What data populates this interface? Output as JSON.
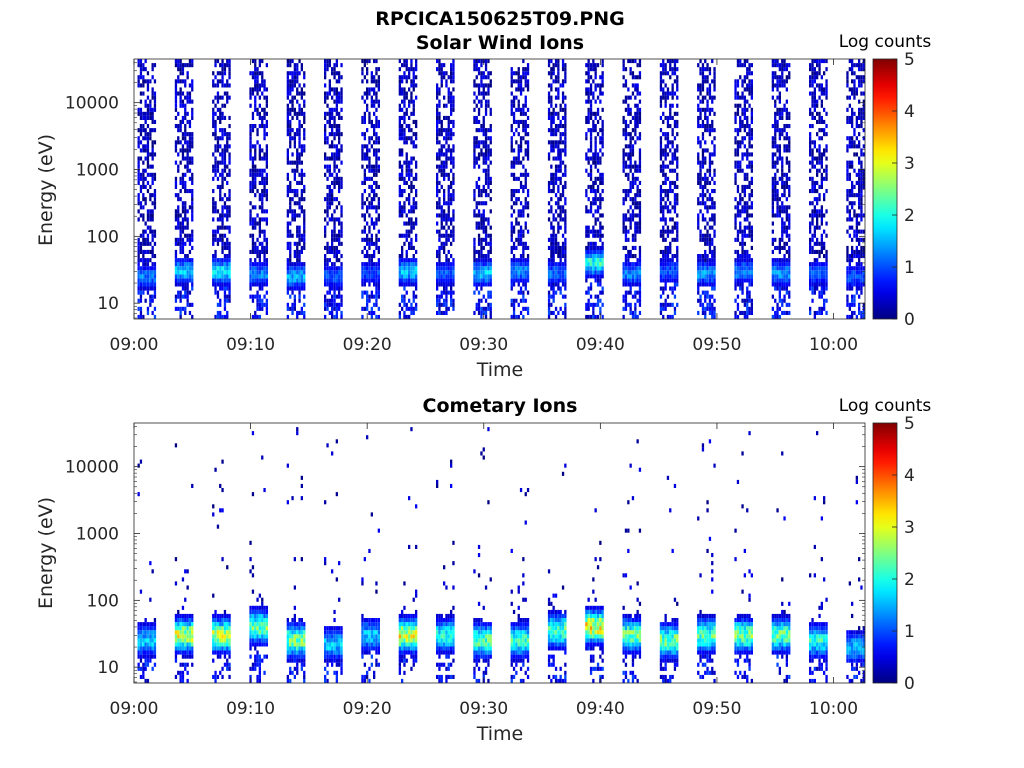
{
  "figure": {
    "title": "RPCICA150625T09.PNG"
  },
  "chart_data": [
    {
      "type": "heatmap",
      "title": "Solar Wind Ions",
      "xlabel": "Time",
      "ylabel": "Energy (eV)",
      "x_tick_labels": [
        "09:00",
        "09:10",
        "09:20",
        "09:30",
        "09:40",
        "09:50",
        "10:00"
      ],
      "x_ticks_minutes": [
        0,
        10,
        20,
        30,
        40,
        50,
        60
      ],
      "xlim_minutes": [
        0,
        62.7
      ],
      "y_scale": "log",
      "y_tick_labels": [
        "10",
        "100",
        "1000",
        "10000"
      ],
      "y_ticks": [
        10,
        100,
        1000,
        10000
      ],
      "ylim": [
        5.8,
        45000
      ],
      "colorbar": {
        "label": "Log counts",
        "ticks": [
          "0",
          "1",
          "2",
          "3",
          "4",
          "5"
        ],
        "range": [
          0,
          5
        ],
        "colormap": "jet"
      },
      "scan_start_minutes": [
        0.3,
        3.5,
        6.7,
        9.9,
        13.1,
        16.3,
        19.5,
        22.7,
        25.9,
        29.1,
        32.3,
        35.5,
        38.7,
        41.9,
        45.1,
        48.3,
        51.5,
        54.7,
        57.9,
        61.1
      ],
      "peak_energy_eV": [
        25,
        30,
        30,
        28,
        25,
        25,
        28,
        30,
        28,
        28,
        30,
        28,
        40,
        28,
        30,
        28,
        30,
        28,
        28,
        25
      ],
      "peak_log_counts": [
        1.5,
        2.0,
        2.2,
        1.6,
        1.8,
        1.3,
        1.2,
        2.0,
        1.3,
        2.0,
        1.6,
        1.4,
        2.6,
        1.6,
        1.3,
        1.7,
        1.6,
        1.7,
        1.3,
        1.3
      ]
    },
    {
      "type": "heatmap",
      "title": "Cometary Ions",
      "xlabel": "Time",
      "ylabel": "Energy (eV)",
      "x_tick_labels": [
        "09:00",
        "09:10",
        "09:20",
        "09:30",
        "09:40",
        "09:50",
        "10:00"
      ],
      "x_ticks_minutes": [
        0,
        10,
        20,
        30,
        40,
        50,
        60
      ],
      "xlim_minutes": [
        0,
        62.7
      ],
      "y_scale": "log",
      "y_tick_labels": [
        "10",
        "100",
        "1000",
        "10000"
      ],
      "y_ticks": [
        10,
        100,
        1000,
        10000
      ],
      "ylim": [
        5.8,
        45000
      ],
      "colorbar": {
        "label": "Log counts",
        "ticks": [
          "0",
          "1",
          "2",
          "3",
          "4",
          "5"
        ],
        "range": [
          0,
          5
        ],
        "colormap": "jet"
      },
      "scan_start_minutes": [
        0.3,
        3.5,
        6.7,
        9.9,
        13.1,
        16.3,
        19.5,
        22.7,
        25.9,
        29.1,
        32.3,
        35.5,
        38.7,
        41.9,
        45.1,
        48.3,
        51.5,
        54.7,
        57.9,
        61.1
      ],
      "peak_energy_eV": [
        25,
        30,
        30,
        40,
        25,
        22,
        30,
        30,
        30,
        25,
        25,
        35,
        40,
        30,
        25,
        30,
        30,
        30,
        25,
        20
      ],
      "peak_log_counts": [
        2.0,
        3.5,
        3.4,
        3.0,
        3.1,
        2.0,
        2.0,
        3.6,
        2.4,
        2.8,
        2.6,
        2.8,
        3.8,
        3.0,
        3.0,
        2.8,
        3.0,
        2.9,
        2.5,
        1.8
      ]
    }
  ]
}
